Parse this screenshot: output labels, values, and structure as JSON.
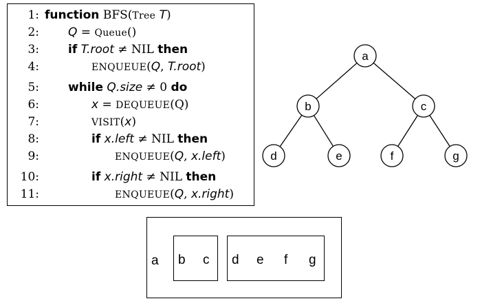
{
  "algorithm": {
    "lines": [
      {
        "num": "1:",
        "parts": [
          {
            "t": "function",
            "c": "kw"
          },
          {
            "t": " BFS(",
            "c": "tx"
          },
          {
            "t": "Tree",
            "c": "sc"
          },
          {
            "t": " ",
            "c": "tx"
          },
          {
            "t": "T",
            "c": "it"
          },
          {
            "t": ")",
            "c": "tx"
          }
        ]
      },
      {
        "num": "2:",
        "parts": [
          {
            "t": "Q",
            "c": "it"
          },
          {
            "t": " = ",
            "c": "tx"
          },
          {
            "t": "Queue",
            "c": "sc"
          },
          {
            "t": "()",
            "c": "tx"
          }
        ]
      },
      {
        "num": "3:",
        "parts": [
          {
            "t": "if",
            "c": "kw"
          },
          {
            "t": " ",
            "c": "tx"
          },
          {
            "t": "T.root",
            "c": "it"
          },
          {
            "t": " ≠ NIL ",
            "c": "tx"
          },
          {
            "t": "then",
            "c": "kw"
          }
        ]
      },
      {
        "num": "4:",
        "parts": [
          {
            "t": "ENQUEUE",
            "c": "sc"
          },
          {
            "t": "(",
            "c": "tx"
          },
          {
            "t": "Q",
            "c": "it"
          },
          {
            "t": ", ",
            "c": "tx"
          },
          {
            "t": "T.root",
            "c": "it"
          },
          {
            "t": ")",
            "c": "tx"
          }
        ]
      },
      {
        "num": "5:",
        "parts": [
          {
            "t": "while",
            "c": "kw"
          },
          {
            "t": " ",
            "c": "tx"
          },
          {
            "t": "Q.size",
            "c": "it"
          },
          {
            "t": " ≠ 0 ",
            "c": "tx"
          },
          {
            "t": "do",
            "c": "kw"
          }
        ]
      },
      {
        "num": "6:",
        "parts": [
          {
            "t": "x",
            "c": "it"
          },
          {
            "t": " = ",
            "c": "tx"
          },
          {
            "t": "DEQUEUE",
            "c": "sc"
          },
          {
            "t": "(Q)",
            "c": "tx"
          }
        ]
      },
      {
        "num": "7:",
        "parts": [
          {
            "t": "VISIT",
            "c": "sc"
          },
          {
            "t": "(",
            "c": "tx"
          },
          {
            "t": "x",
            "c": "it"
          },
          {
            "t": ")",
            "c": "tx"
          }
        ]
      },
      {
        "num": "8:",
        "parts": [
          {
            "t": "if",
            "c": "kw"
          },
          {
            "t": " ",
            "c": "tx"
          },
          {
            "t": "x.left",
            "c": "it"
          },
          {
            "t": " ≠ NIL ",
            "c": "tx"
          },
          {
            "t": "then",
            "c": "kw"
          }
        ]
      },
      {
        "num": "9:",
        "parts": [
          {
            "t": "ENQUEUE",
            "c": "sc"
          },
          {
            "t": "(",
            "c": "tx"
          },
          {
            "t": "Q",
            "c": "it"
          },
          {
            "t": ", ",
            "c": "tx"
          },
          {
            "t": "x.left",
            "c": "it"
          },
          {
            "t": ")",
            "c": "tx"
          }
        ]
      },
      {
        "num": "10:",
        "parts": [
          {
            "t": "if",
            "c": "kw"
          },
          {
            "t": " ",
            "c": "tx"
          },
          {
            "t": "x.right",
            "c": "it"
          },
          {
            "t": " ≠ NIL ",
            "c": "tx"
          },
          {
            "t": "then",
            "c": "kw"
          }
        ]
      },
      {
        "num": "11:",
        "parts": [
          {
            "t": "ENQUEUE",
            "c": "sc"
          },
          {
            "t": "(",
            "c": "tx"
          },
          {
            "t": "Q",
            "c": "it"
          },
          {
            "t": ", ",
            "c": "tx"
          },
          {
            "t": "x.right",
            "c": "it"
          },
          {
            "t": ")",
            "c": "tx"
          }
        ]
      }
    ]
  },
  "tree": {
    "nodes": [
      {
        "id": "a",
        "label": "a"
      },
      {
        "id": "b",
        "label": "b"
      },
      {
        "id": "c",
        "label": "c"
      },
      {
        "id": "d",
        "label": "d"
      },
      {
        "id": "e",
        "label": "e"
      },
      {
        "id": "f",
        "label": "f"
      },
      {
        "id": "g",
        "label": "g"
      }
    ],
    "edges": [
      [
        "a",
        "b"
      ],
      [
        "a",
        "c"
      ],
      [
        "b",
        "d"
      ],
      [
        "b",
        "e"
      ],
      [
        "c",
        "f"
      ],
      [
        "c",
        "g"
      ]
    ]
  },
  "queue": {
    "outer_label": "a",
    "level1": [
      "b",
      "c"
    ],
    "level2": [
      "d",
      "e",
      "f",
      "g"
    ]
  }
}
